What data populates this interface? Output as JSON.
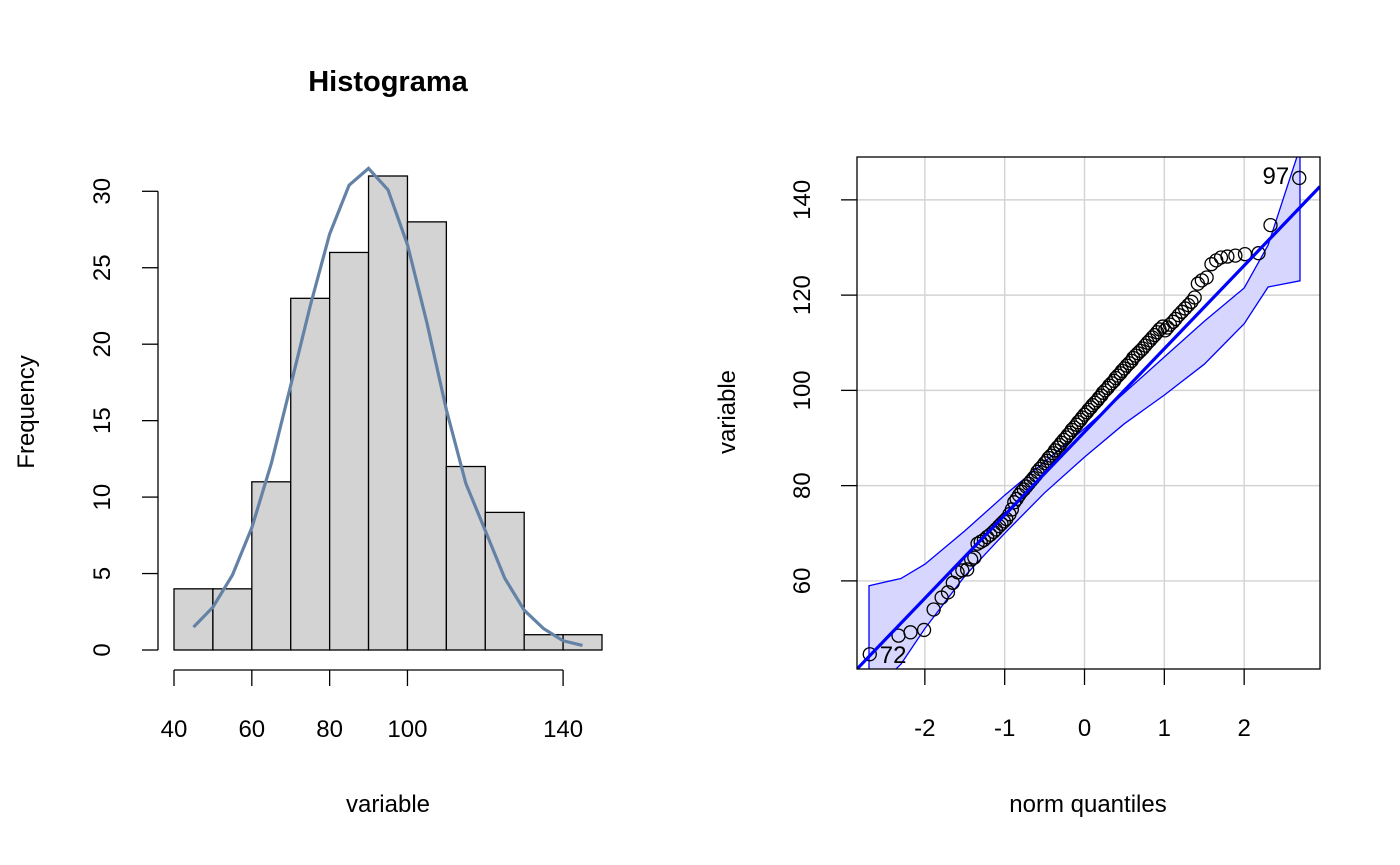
{
  "chart_data": [
    {
      "type": "bar",
      "title": "Histograma",
      "xlabel": "variable",
      "ylabel": "Frequency",
      "bin_edges": [
        40,
        50,
        60,
        70,
        80,
        90,
        100,
        110,
        120,
        130,
        140,
        150
      ],
      "values": [
        4,
        4,
        11,
        23,
        26,
        31,
        28,
        12,
        9,
        1,
        1
      ],
      "xlim": [
        40,
        150
      ],
      "ylim": [
        0,
        31
      ],
      "xticks": [
        40,
        60,
        80,
        100,
        140
      ],
      "yticks": [
        0,
        5,
        10,
        15,
        20,
        25,
        30
      ],
      "bar_color": "#d3d3d3",
      "density_curve": {
        "color": "#6482a6",
        "x": [
          45,
          50,
          55,
          60,
          65,
          70,
          75,
          80,
          85,
          90,
          95,
          100,
          105,
          110,
          115,
          120,
          125,
          130,
          135,
          140,
          145
        ],
        "y": [
          1.5,
          2.8,
          4.9,
          8.0,
          12.2,
          17.3,
          22.5,
          27.2,
          30.4,
          31.5,
          30.1,
          26.5,
          21.4,
          15.7,
          10.9,
          7.8,
          4.7,
          2.6,
          1.4,
          0.6,
          0.3
        ]
      },
      "grid": false
    },
    {
      "type": "scatter",
      "title": "",
      "xlabel": "norm quantiles",
      "ylabel": "variable",
      "xlim": [
        -2.85,
        2.95
      ],
      "ylim": [
        41.5,
        149
      ],
      "xticks": [
        -2,
        -1,
        0,
        1,
        2
      ],
      "yticks": [
        60,
        80,
        100,
        120,
        140
      ],
      "grid": true,
      "line_color": "#0000ff",
      "band_color": "#d6d6ff",
      "reference_line": {
        "x": [
          -2.85,
          2.95
        ],
        "y": [
          41.5,
          142.8
        ]
      },
      "envelope": {
        "x": [
          -2.7,
          -2.3,
          -2.0,
          -1.5,
          -1.0,
          -0.5,
          0,
          0.5,
          1.0,
          1.5,
          2.0,
          2.3,
          2.7
        ],
        "upper": [
          59,
          60.5,
          63.5,
          70.5,
          78,
          85,
          92,
          99.5,
          107,
          114.5,
          121.5,
          130.5,
          151
        ],
        "lower": [
          36,
          42.5,
          50,
          61,
          70,
          78.5,
          86,
          93,
          99,
          105.5,
          114,
          121.7,
          123
        ]
      },
      "points": {
        "x": [
          -2.69,
          -2.33,
          -2.18,
          -2.01,
          -1.89,
          -1.79,
          -1.71,
          -1.65,
          -1.59,
          -1.53,
          -1.47,
          -1.42,
          -1.38,
          -1.34,
          -1.3,
          -1.26,
          -1.22,
          -1.18,
          -1.14,
          -1.11,
          -1.07,
          -1.04,
          -1.01,
          -0.98,
          -0.94,
          -0.91,
          -0.88,
          -0.85,
          -0.82,
          -0.79,
          -0.76,
          -0.73,
          -0.7,
          -0.67,
          -0.64,
          -0.61,
          -0.59,
          -0.56,
          -0.53,
          -0.5,
          -0.47,
          -0.45,
          -0.42,
          -0.39,
          -0.37,
          -0.34,
          -0.31,
          -0.29,
          -0.26,
          -0.23,
          -0.21,
          -0.18,
          -0.16,
          -0.13,
          -0.1,
          -0.08,
          -0.05,
          -0.03,
          0.0,
          0.03,
          0.05,
          0.08,
          0.1,
          0.13,
          0.16,
          0.18,
          0.21,
          0.23,
          0.26,
          0.29,
          0.31,
          0.34,
          0.37,
          0.39,
          0.42,
          0.45,
          0.47,
          0.5,
          0.53,
          0.56,
          0.59,
          0.61,
          0.64,
          0.67,
          0.7,
          0.73,
          0.76,
          0.79,
          0.82,
          0.85,
          0.88,
          0.91,
          0.94,
          0.98,
          1.01,
          1.04,
          1.07,
          1.11,
          1.14,
          1.18,
          1.22,
          1.26,
          1.3,
          1.34,
          1.38,
          1.42,
          1.47,
          1.53,
          1.59,
          1.65,
          1.71,
          1.79,
          1.89,
          2.01,
          2.18,
          2.33,
          2.69
        ],
        "y": [
          44.6,
          48.5,
          49.2,
          49.7,
          54.0,
          56.5,
          57.6,
          59.6,
          61.8,
          62.2,
          62.4,
          64.5,
          64.9,
          67.8,
          68.2,
          68.6,
          69.2,
          69.7,
          70.3,
          70.8,
          71.5,
          72.0,
          72.5,
          73.0,
          74.0,
          75.0,
          76.5,
          77.2,
          78.0,
          78.7,
          79.2,
          79.8,
          80.4,
          81.0,
          81.6,
          82.2,
          82.9,
          83.5,
          84.0,
          84.7,
          85.2,
          85.8,
          86.3,
          86.8,
          87.4,
          88.0,
          88.5,
          89.0,
          89.6,
          90.1,
          90.6,
          91.1,
          91.7,
          92.2,
          92.8,
          93.3,
          93.8,
          94.3,
          94.9,
          95.4,
          95.9,
          96.4,
          96.9,
          97.4,
          97.9,
          98.4,
          98.9,
          99.5,
          100.0,
          100.5,
          101.0,
          101.5,
          102.0,
          102.6,
          103.1,
          103.6,
          104.1,
          104.6,
          105.2,
          105.7,
          106.2,
          106.8,
          107.3,
          107.8,
          108.3,
          108.8,
          109.4,
          110.0,
          110.5,
          111.1,
          111.6,
          112.2,
          112.8,
          113.4,
          112.6,
          113.2,
          113.8,
          114.4,
          115.0,
          115.8,
          116.5,
          117.2,
          117.9,
          118.6,
          119.5,
          122.4,
          123.1,
          123.7,
          126.5,
          127.3,
          127.9,
          128.1,
          128.3,
          128.6,
          128.8,
          134.7,
          144.6
        ]
      },
      "point_labels": [
        {
          "text": "97",
          "x": 2.69,
          "y": 144.6
        },
        {
          "text": "72",
          "x": -2.69,
          "y": 44.6
        }
      ]
    }
  ]
}
